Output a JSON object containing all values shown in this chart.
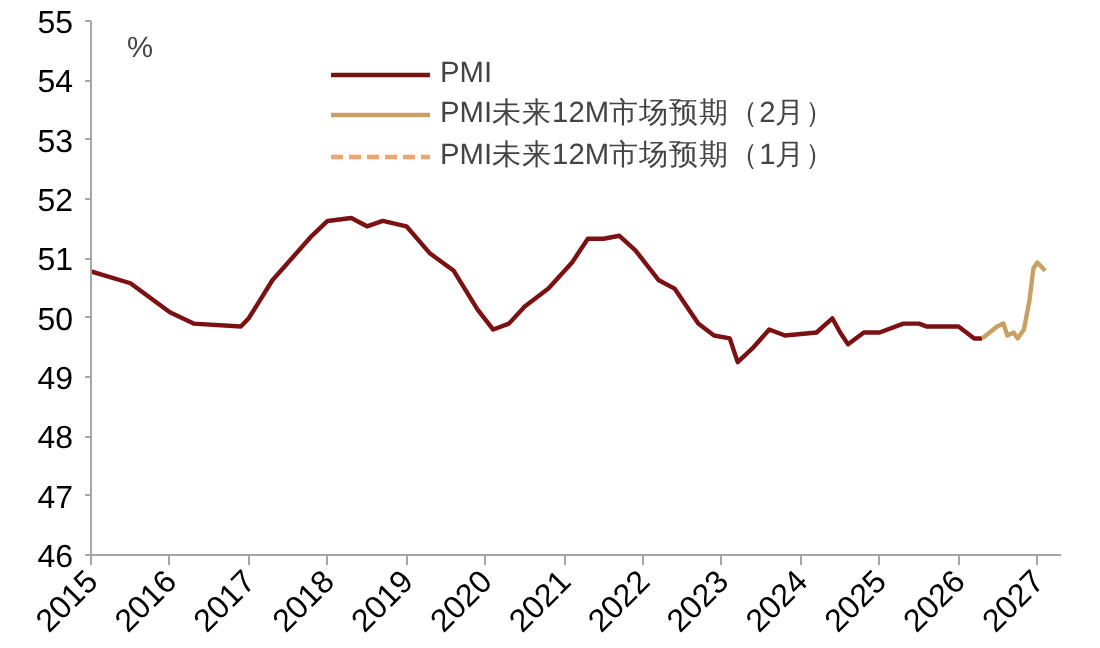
{
  "chart_data": {
    "type": "line",
    "ylabel": "%",
    "xlim": [
      2015,
      2027.3
    ],
    "ylim": [
      46,
      55
    ],
    "xticks": [
      2015,
      2016,
      2017,
      2018,
      2019,
      2020,
      2021,
      2022,
      2023,
      2024,
      2025,
      2026,
      2027
    ],
    "yticks": [
      46,
      47,
      48,
      49,
      50,
      51,
      52,
      53,
      54,
      55
    ],
    "grid": false,
    "legend": "top",
    "marker": "none",
    "series": [
      {
        "name": "PMI",
        "color": "#7b1113",
        "line_style": "solid",
        "x": [
          2015.0,
          2015.5,
          2016.0,
          2016.3,
          2016.9,
          2017.0,
          2017.3,
          2017.5,
          2017.8,
          2018.0,
          2018.3,
          2018.5,
          2018.7,
          2019.0,
          2019.3,
          2019.6,
          2019.9,
          2020.1,
          2020.3,
          2020.5,
          2020.8,
          2021.1,
          2021.3,
          2021.5,
          2021.7,
          2021.9,
          2022.2,
          2022.4,
          2022.7,
          2022.9,
          2023.1,
          2023.2,
          2023.4,
          2023.6,
          2023.8,
          2024.2,
          2024.4,
          2024.5,
          2024.6,
          2024.8,
          2025.0,
          2025.3,
          2025.5,
          2025.6,
          2026.0,
          2026.2,
          2026.3
        ],
        "values": [
          50.78,
          50.58,
          50.09,
          49.9,
          49.85,
          49.99,
          50.63,
          50.93,
          51.38,
          51.63,
          51.68,
          51.54,
          51.63,
          51.54,
          51.08,
          50.79,
          50.14,
          49.8,
          49.9,
          50.19,
          50.49,
          50.93,
          51.33,
          51.33,
          51.38,
          51.14,
          50.63,
          50.49,
          49.9,
          49.7,
          49.65,
          49.25,
          49.5,
          49.8,
          49.7,
          49.75,
          49.99,
          49.75,
          49.55,
          49.75,
          49.75,
          49.9,
          49.9,
          49.85,
          49.85,
          49.65,
          49.65
        ]
      },
      {
        "name": "PMI未来12M市场预期（2月）",
        "color": "#c9a063",
        "line_style": "solid",
        "x": [
          2026.3,
          2026.49,
          2026.57,
          2026.62,
          2026.7,
          2026.75,
          2026.83,
          2026.9,
          2026.95,
          2027.0,
          2027.1
        ],
        "values": [
          49.65,
          49.85,
          49.9,
          49.7,
          49.75,
          49.65,
          49.8,
          50.29,
          50.83,
          50.93,
          50.79
        ]
      },
      {
        "name": "PMI未来12M市场预期（1月）",
        "color": "#f0a46e",
        "line_style": "dashed"
      }
    ]
  }
}
